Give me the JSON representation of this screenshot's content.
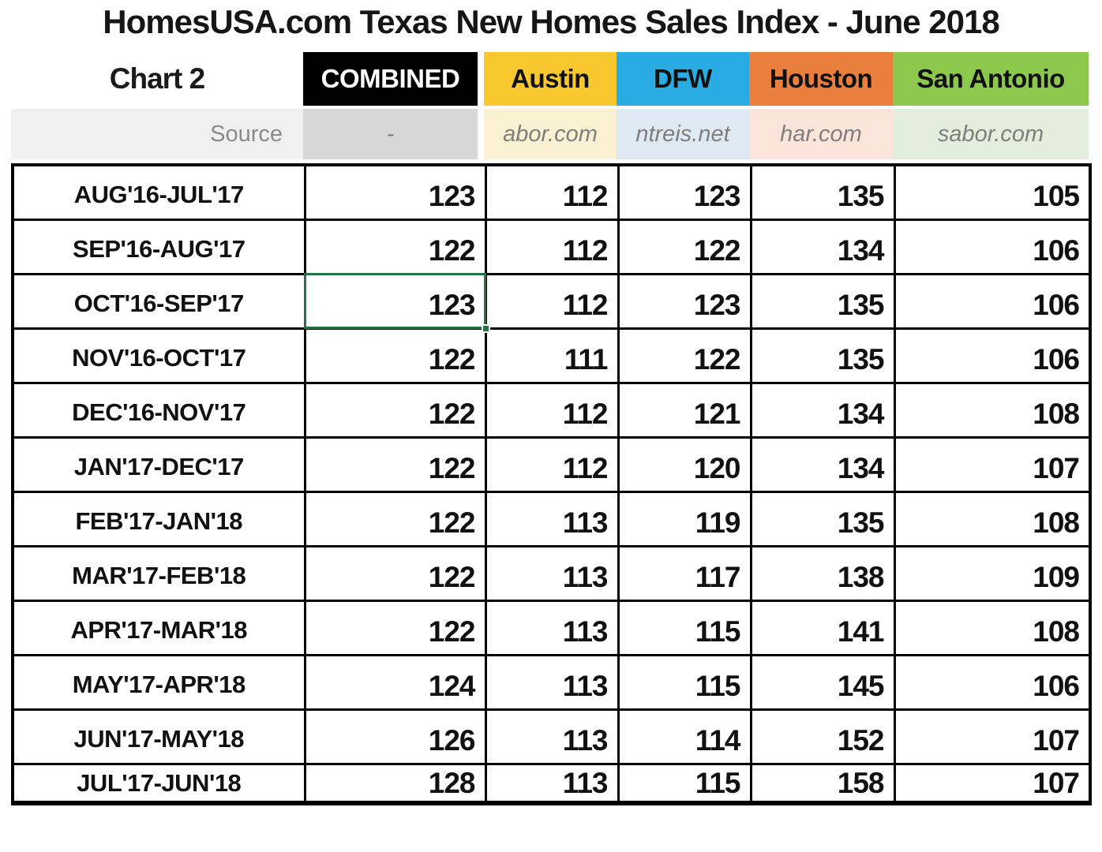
{
  "title": "HomesUSA.com Texas New Homes Sales Index - June 2018",
  "chart_label": "Chart 2",
  "labels": {
    "source": "Source"
  },
  "colors": {
    "combined_header_bg": "#000000",
    "combined_header_text": "#FFFFFF",
    "austin_header_bg": "#F9C82F",
    "dfw_header_bg": "#29ACE3",
    "houston_header_bg": "#EA7E3C",
    "san_antonio_header_bg": "#8CC84C",
    "header_text": "#111111",
    "source_label_bg": "#F0F0F0",
    "combined_source_bg": "#D7D7D7",
    "austin_source_bg": "#FAF0D2",
    "dfw_source_bg": "#DFE9F4",
    "houston_source_bg": "#FBE5DA",
    "san_antonio_source_bg": "#E4EEDC",
    "selection": "#217346"
  },
  "selection": {
    "row": 2,
    "col": 0
  },
  "chart_data": {
    "type": "table",
    "title": "HomesUSA.com Texas New Homes Sales Index - June 2018",
    "categories": [
      "AUG'16-JUL'17",
      "SEP'16-AUG'17",
      "OCT'16-SEP'17",
      "NOV'16-OCT'17",
      "DEC'16-NOV'17",
      "JAN'17-DEC'17",
      "FEB'17-JAN'18",
      "MAR'17-FEB'18",
      "APR'17-MAR'18",
      "MAY'17-APR'18",
      "JUN'17-MAY'18",
      "JUL'17-JUN'18"
    ],
    "series": [
      {
        "name": "COMBINED",
        "source": "-",
        "values": [
          123,
          122,
          123,
          122,
          122,
          122,
          122,
          122,
          122,
          124,
          126,
          128
        ]
      },
      {
        "name": "Austin",
        "source": "abor.com",
        "values": [
          112,
          112,
          112,
          111,
          112,
          112,
          113,
          113,
          113,
          113,
          113,
          113
        ]
      },
      {
        "name": "DFW",
        "source": "ntreis.net",
        "values": [
          123,
          122,
          123,
          122,
          121,
          120,
          119,
          117,
          115,
          115,
          114,
          115
        ]
      },
      {
        "name": "Houston",
        "source": "har.com",
        "values": [
          135,
          134,
          135,
          135,
          134,
          134,
          135,
          138,
          141,
          145,
          152,
          158
        ]
      },
      {
        "name": "San Antonio",
        "source": "sabor.com",
        "values": [
          105,
          106,
          106,
          106,
          108,
          107,
          108,
          109,
          108,
          106,
          107,
          107
        ]
      }
    ]
  }
}
